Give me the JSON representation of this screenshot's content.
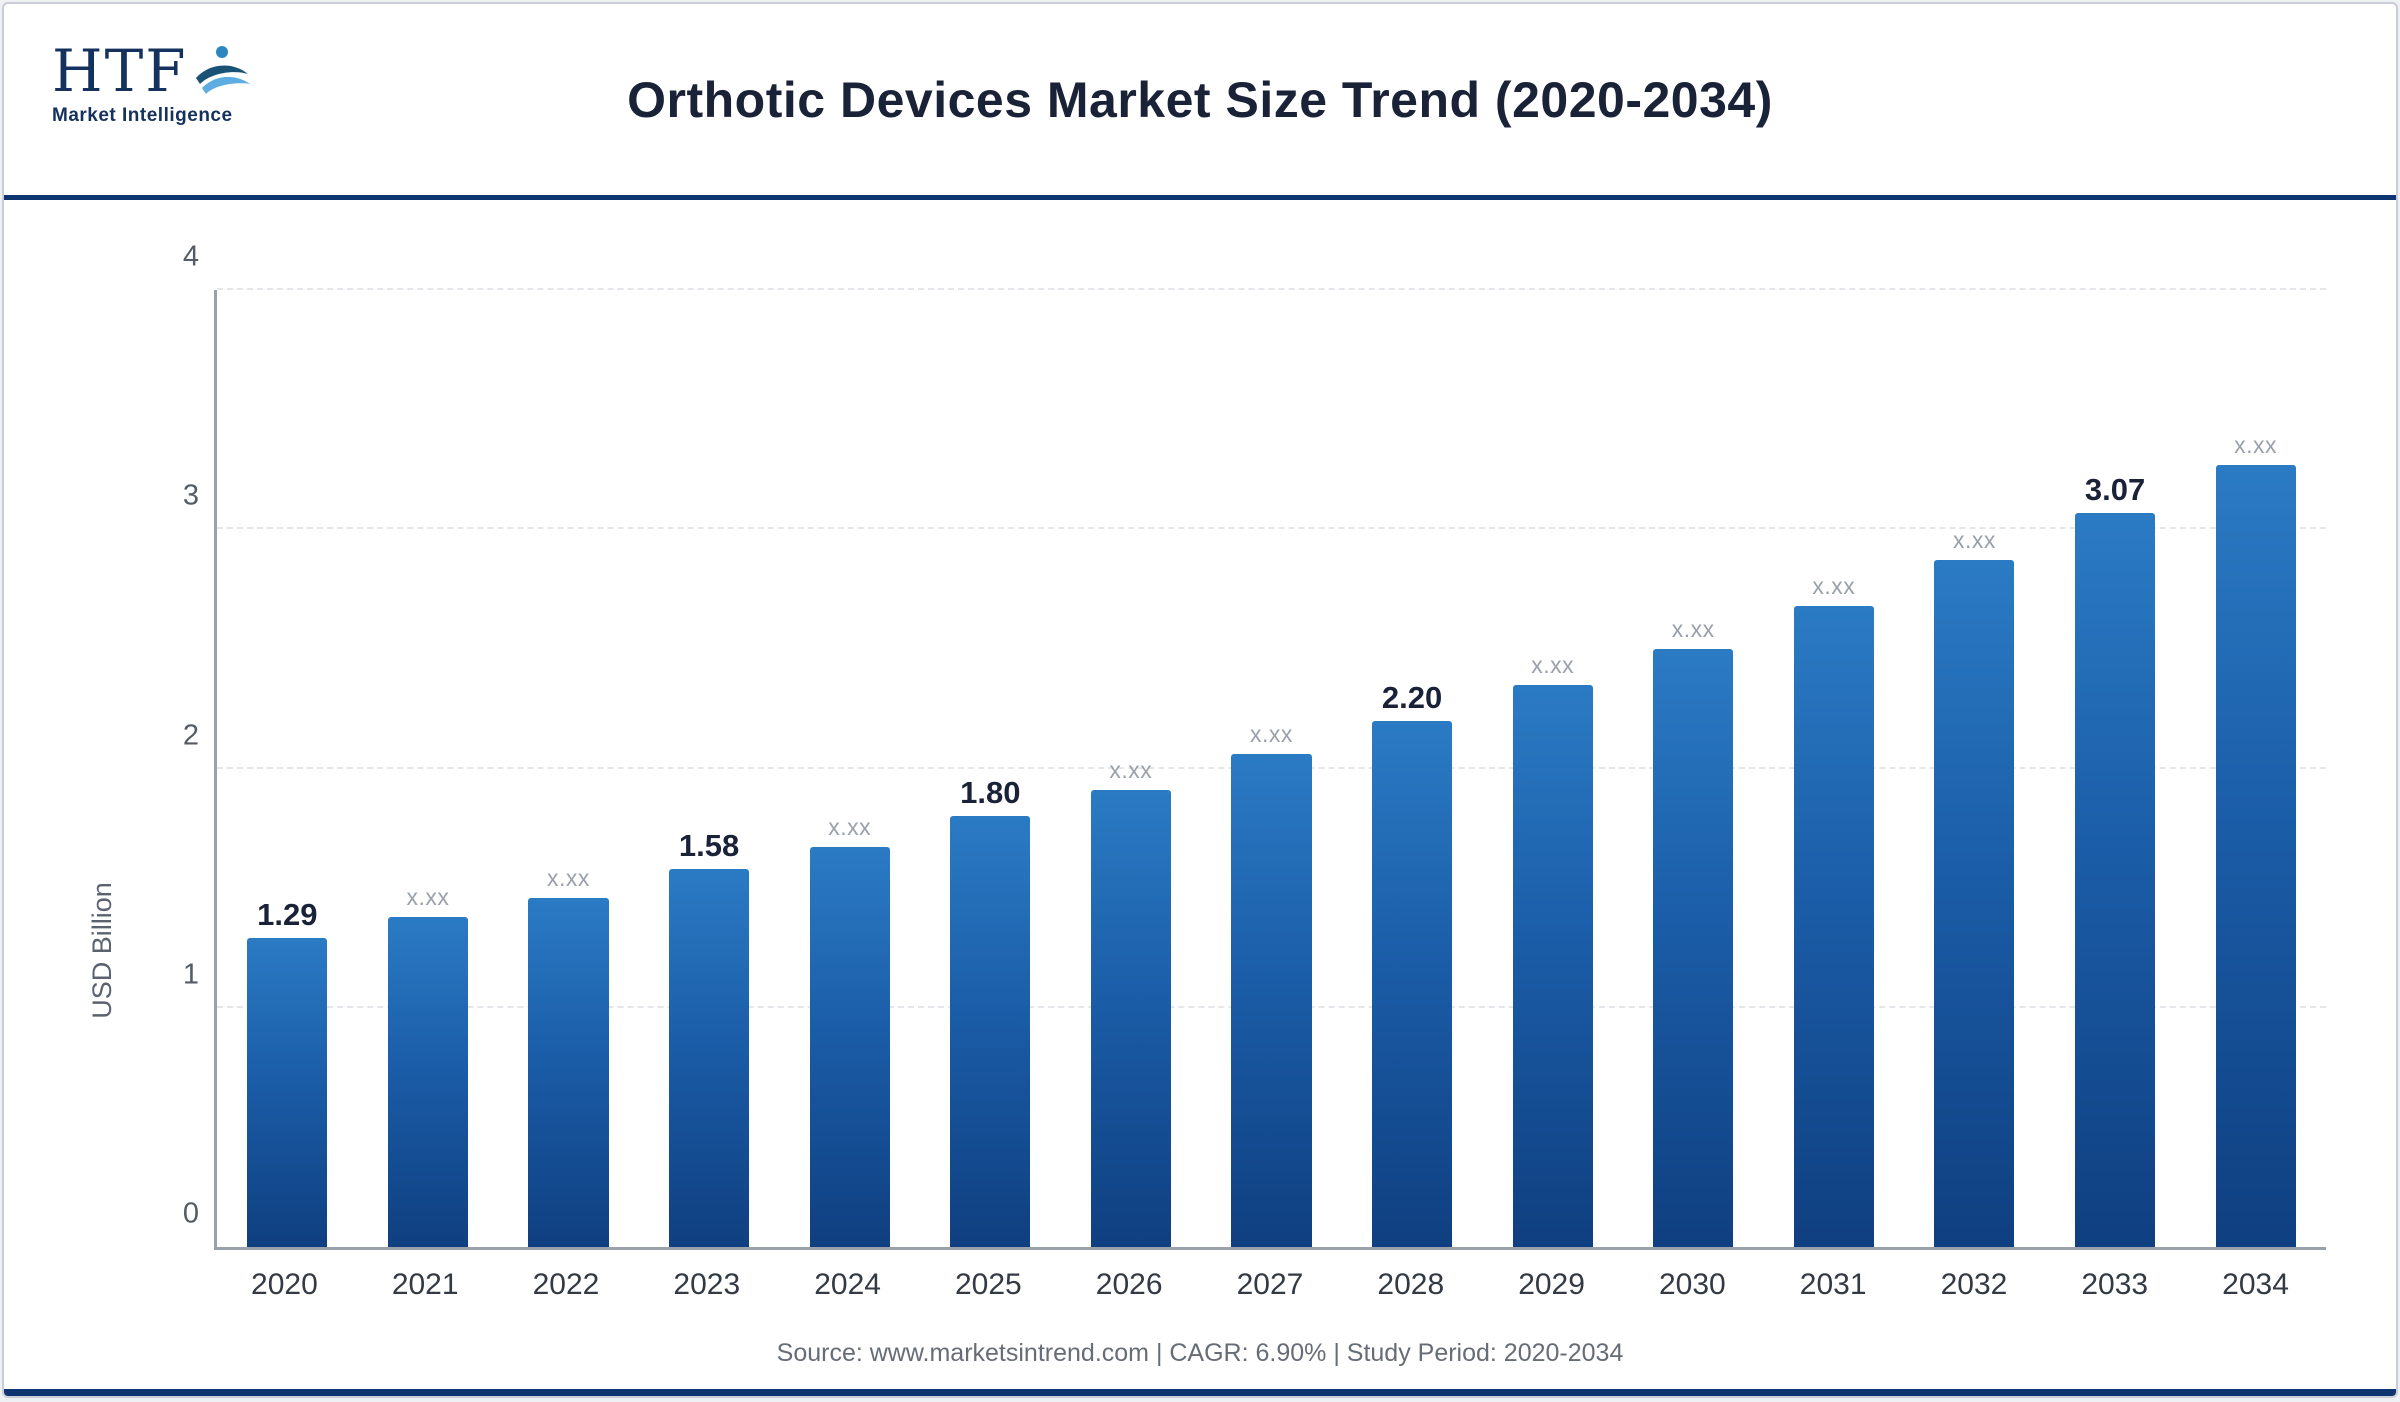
{
  "header": {
    "logo_main": "HTF",
    "logo_sub": "Market Intelligence",
    "title": "Orthotic Devices Market Size Trend (2020-2034)"
  },
  "chart_data": {
    "type": "bar",
    "title": "Orthotic Devices Market Size Trend (2020-2034)",
    "categories": [
      "2020",
      "2021",
      "2022",
      "2023",
      "2024",
      "2025",
      "2026",
      "2027",
      "2028",
      "2029",
      "2030",
      "2031",
      "2032",
      "2033",
      "2034"
    ],
    "values": [
      1.29,
      1.38,
      1.46,
      1.58,
      1.67,
      1.8,
      1.91,
      2.06,
      2.2,
      2.35,
      2.5,
      2.68,
      2.87,
      3.07,
      3.27
    ],
    "bar_labels": [
      "1.29",
      "x.xx",
      "x.xx",
      "1.58",
      "x.xx",
      "1.80",
      "x.xx",
      "x.xx",
      "2.20",
      "x.xx",
      "x.xx",
      "x.xx",
      "x.xx",
      "3.07",
      "x.xx"
    ],
    "masked_placeholder": "x.xx",
    "xlabel": "",
    "ylabel": "USD Billion",
    "ylim": [
      0,
      4
    ],
    "yticks": [
      0,
      1,
      2,
      3,
      4
    ],
    "grid": "horizontal-dashed",
    "legend": "none",
    "bar_color_top": "#2b7bc4",
    "bar_color_bottom": "#0f3f80"
  },
  "footer": {
    "text": "Source: www.marketsintrend.com  |  CAGR: 6.90%  |  Study Period: 2020-2034"
  }
}
